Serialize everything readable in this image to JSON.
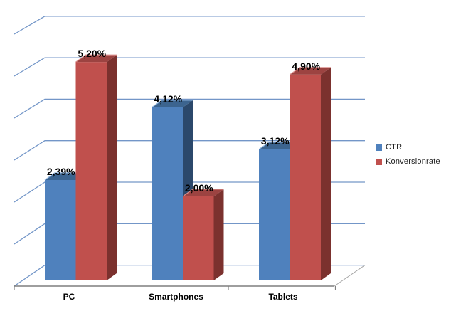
{
  "chart_data": {
    "type": "bar",
    "variant": "3d-clustered-column",
    "title": "",
    "xlabel": "",
    "ylabel": "",
    "categories": [
      "PC",
      "Smartphones",
      "Tablets"
    ],
    "series": [
      {
        "name": "CTR",
        "values": [
          2.39,
          4.12,
          3.12
        ],
        "labels": [
          "2,39%",
          "4,12%",
          "3,12%"
        ],
        "color": "#4f81bd",
        "color_top": "#3c648f",
        "color_side": "#2b486b",
        "color_bevel": "#8cb2dc"
      },
      {
        "name": "Konversionrate",
        "values": [
          5.2,
          2.0,
          4.9
        ],
        "labels": [
          "5,20%",
          "2,00%",
          "4,90%"
        ],
        "color": "#c0504d",
        "color_top": "#9c4341",
        "color_side": "#7b312e",
        "color_bevel": "#d88a87"
      }
    ],
    "ylim": [
      0,
      6
    ],
    "gridlines": {
      "show": true,
      "count": 7,
      "interval_pct": 1,
      "color": "#7396c8"
    },
    "axis": {
      "line_color": "#7f7f7f",
      "edge_color": "#a6a6a6",
      "tick_color": "#7f7f7f"
    },
    "legend": {
      "position": "right",
      "entries": [
        "CTR",
        "Konversionrate"
      ]
    },
    "value_format": "0,00%",
    "decimal_separator": ",",
    "data_label_color": "#000000",
    "category_label_color": "#000000",
    "background": "#ffffff"
  }
}
